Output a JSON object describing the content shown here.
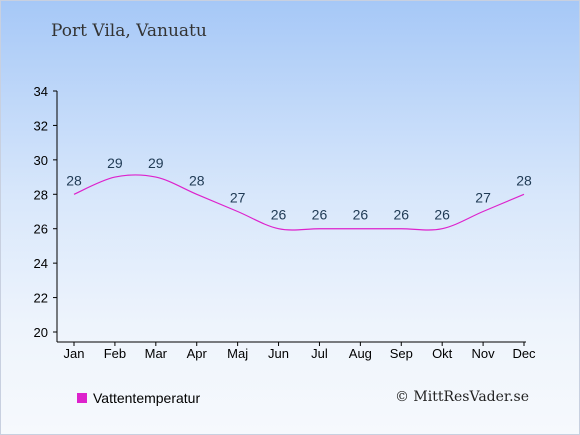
{
  "chart_data": {
    "type": "line",
    "title": "Port Vila, Vanuatu",
    "categories": [
      "Jan",
      "Feb",
      "Mar",
      "Apr",
      "Maj",
      "Jun",
      "Jul",
      "Aug",
      "Sep",
      "Okt",
      "Nov",
      "Dec"
    ],
    "series": [
      {
        "name": "Vattentemperatur",
        "values": [
          28,
          29,
          29,
          28,
          27,
          26,
          26,
          26,
          26,
          26,
          27,
          28
        ],
        "color": "#dd22cc"
      }
    ],
    "ylim": [
      20,
      34
    ],
    "yticks": [
      20,
      22,
      24,
      26,
      28,
      30,
      32,
      34
    ],
    "grid": false,
    "legend_position": "bottom-left"
  },
  "copyright": "© MittResVader.se"
}
